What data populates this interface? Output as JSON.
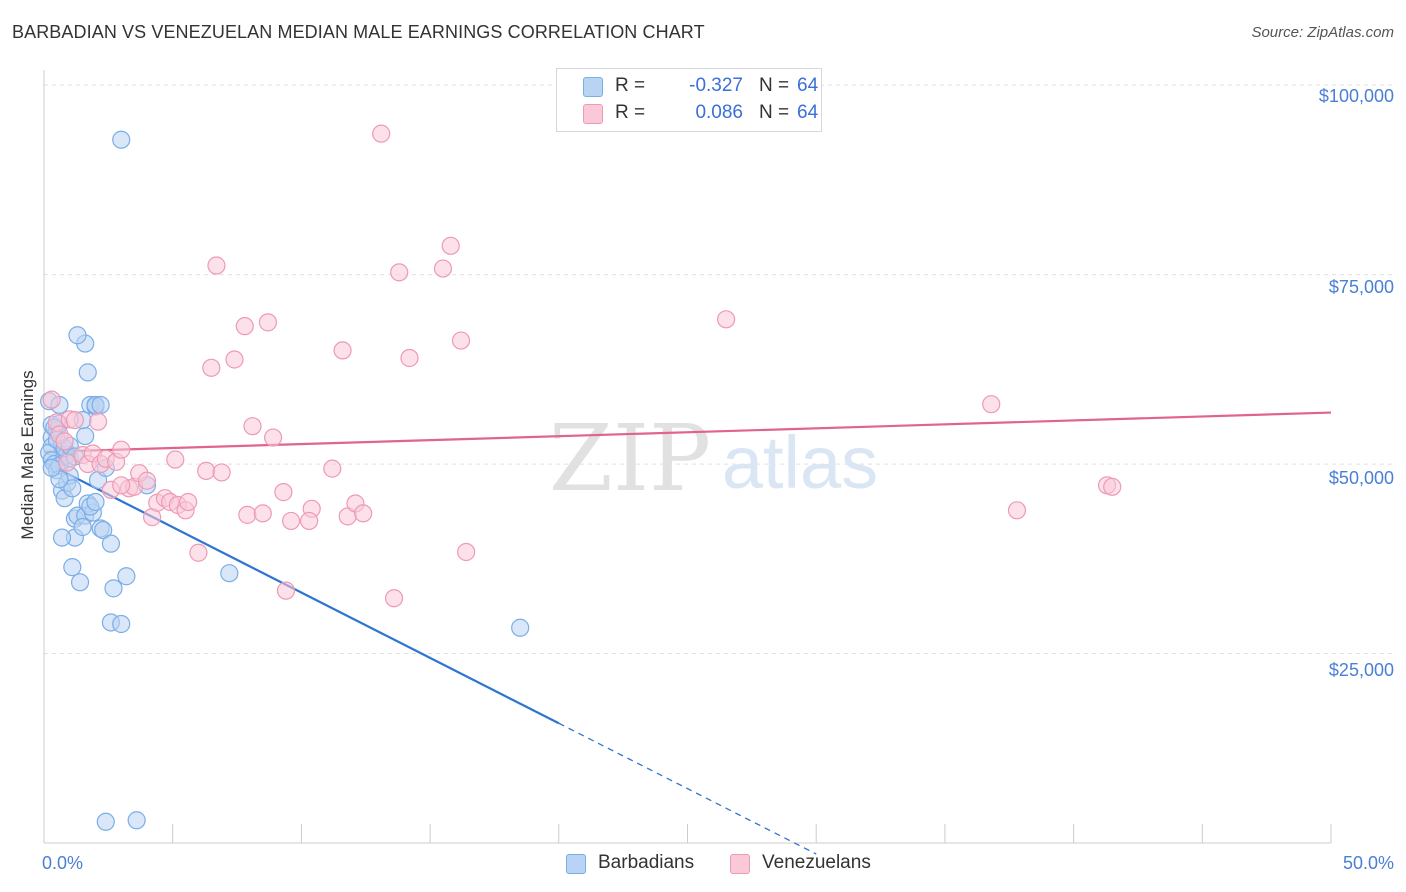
{
  "chart_data": {
    "type": "scatter",
    "title": "BARBADIAN VS VENEZUELAN MEDIAN MALE EARNINGS CORRELATION CHART",
    "source": "Source: ZipAtlas.com",
    "xlabel": "",
    "ylabel": "Median Male Earnings",
    "xlim": [
      0,
      50
    ],
    "ylim": [
      0,
      102000
    ],
    "x_tick_labels": [
      "0.0%",
      "50.0%"
    ],
    "y_ticks": [
      {
        "value": 100000,
        "label": "$100,000"
      },
      {
        "value": 75000,
        "label": "$75,000"
      },
      {
        "value": 50000,
        "label": "$50,000"
      },
      {
        "value": 25000,
        "label": "$25,000"
      }
    ],
    "watermark": {
      "zip": "ZIP",
      "atlas": "atlas"
    },
    "legend": {
      "rows": [
        {
          "r_label": "R =",
          "r_value": "-0.327",
          "n_label": "N =",
          "n_value": "64"
        },
        {
          "r_label": "R =",
          "r_value": "0.086",
          "n_label": "N =",
          "n_value": "64"
        }
      ]
    },
    "series": [
      {
        "name": "Barbadians",
        "color": "#7aaee8",
        "fill": "#b9d3f3",
        "line_color": "#2f74d0",
        "trend": {
          "x0": 0.0,
          "y0": 50300,
          "x1": 20.0,
          "y1": 15800,
          "dash_to_x": 30.0,
          "dash_to_y": -1450
        },
        "points": [
          [
            0.2,
            58300
          ],
          [
            0.3,
            55200
          ],
          [
            0.3,
            53500
          ],
          [
            0.3,
            52300
          ],
          [
            0.2,
            51500
          ],
          [
            0.3,
            50500
          ],
          [
            0.4,
            50000
          ],
          [
            0.5,
            49200
          ],
          [
            0.5,
            54500
          ],
          [
            0.6,
            57800
          ],
          [
            0.6,
            55300
          ],
          [
            0.7,
            52500
          ],
          [
            0.8,
            51000
          ],
          [
            0.6,
            49800
          ],
          [
            0.7,
            46500
          ],
          [
            0.8,
            45500
          ],
          [
            0.9,
            47500
          ],
          [
            1.0,
            48500
          ],
          [
            0.9,
            51200
          ],
          [
            1.0,
            50800
          ],
          [
            1.1,
            46800
          ],
          [
            1.2,
            42800
          ],
          [
            1.3,
            43200
          ],
          [
            1.2,
            40300
          ],
          [
            0.7,
            40300
          ],
          [
            1.1,
            36400
          ],
          [
            1.4,
            34400
          ],
          [
            1.6,
            43200
          ],
          [
            1.5,
            41700
          ],
          [
            1.7,
            44800
          ],
          [
            1.9,
            43600
          ],
          [
            1.8,
            44400
          ],
          [
            2.1,
            47900
          ],
          [
            2.2,
            41500
          ],
          [
            2.3,
            41300
          ],
          [
            2.4,
            49500
          ],
          [
            2.6,
            39500
          ],
          [
            2.7,
            33600
          ],
          [
            2.6,
            29100
          ],
          [
            3.0,
            28900
          ],
          [
            3.2,
            35200
          ],
          [
            1.6,
            53700
          ],
          [
            1.5,
            55800
          ],
          [
            1.8,
            57800
          ],
          [
            2.0,
            57600
          ],
          [
            2.0,
            57800
          ],
          [
            2.2,
            57800
          ],
          [
            1.6,
            65900
          ],
          [
            1.3,
            67000
          ],
          [
            1.7,
            62100
          ],
          [
            3.0,
            92800
          ],
          [
            7.2,
            35600
          ],
          [
            18.5,
            28400
          ],
          [
            2.4,
            2800
          ],
          [
            3.6,
            3000
          ],
          [
            0.4,
            54800
          ],
          [
            0.5,
            53200
          ],
          [
            0.8,
            52100
          ],
          [
            1.0,
            52400
          ],
          [
            1.2,
            51000
          ],
          [
            0.6,
            48000
          ],
          [
            2.0,
            45000
          ],
          [
            4.0,
            47200
          ],
          [
            0.3,
            49500
          ]
        ]
      },
      {
        "name": "Venezuelans",
        "color": "#ee9ab4",
        "fill": "#f9c9d8",
        "line_color": "#e0648c",
        "trend": {
          "x0": 0.0,
          "y0": 51600,
          "x1": 50.0,
          "y1": 56800
        },
        "points": [
          [
            0.3,
            58500
          ],
          [
            0.5,
            55500
          ],
          [
            0.6,
            53900
          ],
          [
            0.8,
            53000
          ],
          [
            1.0,
            55900
          ],
          [
            1.2,
            55800
          ],
          [
            1.5,
            51200
          ],
          [
            1.7,
            50000
          ],
          [
            1.9,
            51400
          ],
          [
            2.1,
            55600
          ],
          [
            2.2,
            50000
          ],
          [
            2.4,
            50700
          ],
          [
            2.6,
            46600
          ],
          [
            2.8,
            50300
          ],
          [
            3.0,
            51900
          ],
          [
            3.3,
            46800
          ],
          [
            3.5,
            47000
          ],
          [
            3.7,
            48800
          ],
          [
            4.0,
            47800
          ],
          [
            4.2,
            43000
          ],
          [
            4.4,
            44900
          ],
          [
            4.7,
            45500
          ],
          [
            4.9,
            45000
          ],
          [
            5.2,
            44600
          ],
          [
            5.1,
            50600
          ],
          [
            5.5,
            43900
          ],
          [
            5.6,
            45000
          ],
          [
            6.0,
            38300
          ],
          [
            6.3,
            49100
          ],
          [
            6.5,
            62700
          ],
          [
            6.7,
            76200
          ],
          [
            6.9,
            48900
          ],
          [
            7.4,
            63800
          ],
          [
            7.8,
            68200
          ],
          [
            7.9,
            43300
          ],
          [
            8.1,
            55000
          ],
          [
            8.5,
            43500
          ],
          [
            8.7,
            68700
          ],
          [
            8.9,
            53500
          ],
          [
            9.3,
            46300
          ],
          [
            9.4,
            33300
          ],
          [
            9.6,
            42500
          ],
          [
            10.4,
            44100
          ],
          [
            10.3,
            42500
          ],
          [
            11.2,
            49400
          ],
          [
            11.6,
            65000
          ],
          [
            11.8,
            43100
          ],
          [
            12.1,
            44800
          ],
          [
            12.4,
            43500
          ],
          [
            13.1,
            93600
          ],
          [
            13.6,
            32300
          ],
          [
            13.8,
            75300
          ],
          [
            14.2,
            64000
          ],
          [
            15.5,
            75800
          ],
          [
            15.8,
            78800
          ],
          [
            16.2,
            66300
          ],
          [
            16.4,
            38400
          ],
          [
            26.5,
            69100
          ],
          [
            36.8,
            57900
          ],
          [
            37.8,
            43900
          ],
          [
            41.3,
            47200
          ],
          [
            41.5,
            47000
          ],
          [
            3.0,
            47200
          ],
          [
            0.9,
            50200
          ]
        ]
      }
    ]
  }
}
